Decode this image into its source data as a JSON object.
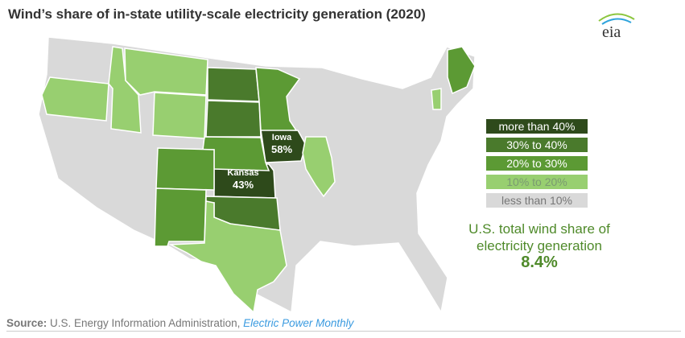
{
  "title": "Wind’s share of in-state utility-scale electricity generation (2020)",
  "logo_text": "eia",
  "legend": [
    {
      "label": "more than 40%",
      "color": "#2e4a1b",
      "text_color": "#ffffff"
    },
    {
      "label": "30% to 40%",
      "color": "#4a7a2c",
      "text_color": "#ffffff"
    },
    {
      "label": "20% to 30%",
      "color": "#5c9a34",
      "text_color": "#ffffff"
    },
    {
      "label": "10% to 20%",
      "color": "#98cf70",
      "text_color": "#7a9a70"
    },
    {
      "label": "less than 10%",
      "color": "#d9d9d9",
      "text_color": "#777777"
    }
  ],
  "states": {
    "more than 40%": [
      "Iowa",
      "Kansas"
    ],
    "30% to 40%": [
      "North Dakota",
      "South Dakota",
      "Oklahoma"
    ],
    "20% to 30%": [
      "Minnesota",
      "Nebraska",
      "Colorado",
      "New Mexico",
      "Maine"
    ],
    "10% to 20%": [
      "Oregon",
      "Idaho",
      "Montana",
      "Wyoming",
      "Texas",
      "Illinois",
      "Vermont"
    ]
  },
  "labels": {
    "iowa": {
      "name": "Iowa",
      "value": "58%"
    },
    "kansas": {
      "name": "Kansas",
      "value": "43%"
    }
  },
  "summary": {
    "line1": "U.S. total wind share of",
    "line2": "electricity generation",
    "value": "8.4%"
  },
  "source": {
    "label": "Source:",
    "text": " U.S. Energy Information Administration, ",
    "link": "Electric Power Monthly"
  }
}
